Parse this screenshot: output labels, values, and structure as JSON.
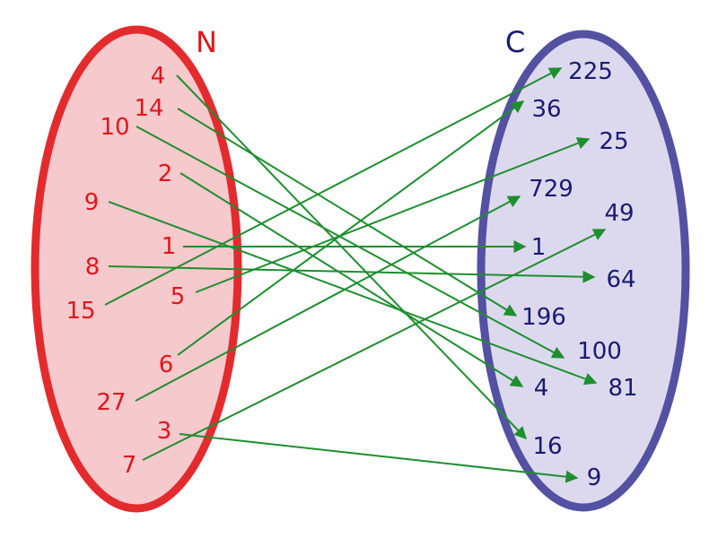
{
  "sets": {
    "domain": {
      "name": "N",
      "fill": "#f6c9cc",
      "stroke": "#e32b2e",
      "text_color": "#e0161d"
    },
    "codomain": {
      "name": "C",
      "fill": "#dcd9ee",
      "stroke": "#5351a1",
      "text_color": "#1a1a73"
    }
  },
  "arrow_color": "#1e8e2f",
  "domain_elements": [
    "4",
    "14",
    "10",
    "2",
    "9",
    "1",
    "8",
    "5",
    "15",
    "6",
    "27",
    "3",
    "7"
  ],
  "codomain_elements": [
    "225",
    "36",
    "25",
    "729",
    "49",
    "1",
    "64",
    "196",
    "100",
    "4",
    "81",
    "16",
    "9"
  ],
  "mapping": [
    {
      "from": "4",
      "to": "16"
    },
    {
      "from": "14",
      "to": "196"
    },
    {
      "from": "10",
      "to": "100"
    },
    {
      "from": "2",
      "to": "4"
    },
    {
      "from": "9",
      "to": "81"
    },
    {
      "from": "1",
      "to": "1"
    },
    {
      "from": "8",
      "to": "64"
    },
    {
      "from": "5",
      "to": "25"
    },
    {
      "from": "15",
      "to": "225"
    },
    {
      "from": "6",
      "to": "36"
    },
    {
      "from": "27",
      "to": "729"
    },
    {
      "from": "3",
      "to": "9"
    },
    {
      "from": "7",
      "to": "49"
    }
  ]
}
